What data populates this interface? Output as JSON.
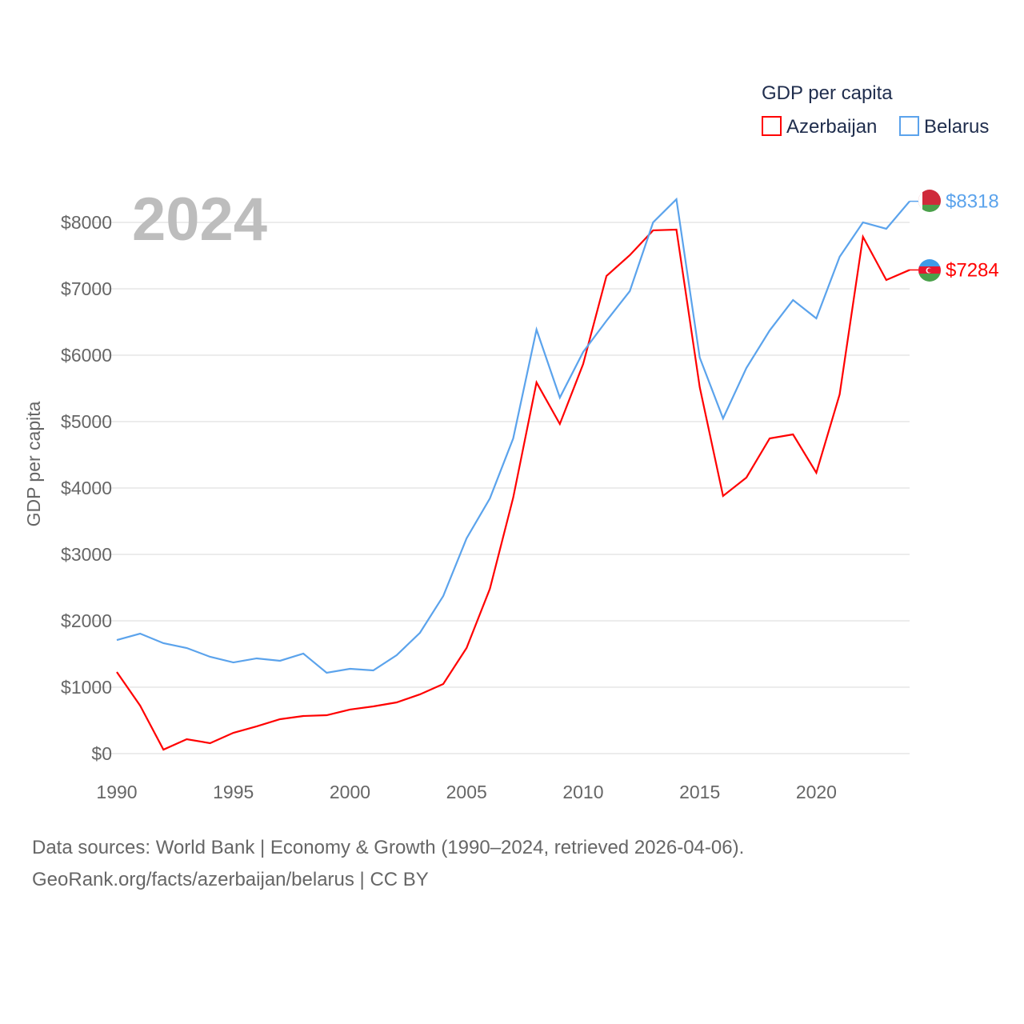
{
  "chart_data": {
    "type": "line",
    "title": "GDP per capita",
    "year_label": "2024",
    "ylabel": "GDP per capita",
    "xlabel": "",
    "xlim": [
      1990,
      2024
    ],
    "ylim": [
      0,
      8000
    ],
    "x_ticks": [
      1990,
      1995,
      2000,
      2005,
      2010,
      2015,
      2020
    ],
    "y_ticks": [
      0,
      1000,
      2000,
      3000,
      4000,
      5000,
      6000,
      7000,
      8000
    ],
    "y_tick_labels": [
      "$0",
      "$1000",
      "$2000",
      "$3000",
      "$4000",
      "$5000",
      "$6000",
      "$7000",
      "$8000"
    ],
    "grid": true,
    "legend_placement": "top-right",
    "x": [
      1990,
      1991,
      1992,
      1993,
      1994,
      1995,
      1996,
      1997,
      1998,
      1999,
      2000,
      2001,
      2002,
      2003,
      2004,
      2005,
      2006,
      2007,
      2008,
      2009,
      2010,
      2011,
      2012,
      2013,
      2014,
      2015,
      2016,
      2017,
      2018,
      2019,
      2020,
      2021,
      2022,
      2023,
      2024
    ],
    "series": [
      {
        "name": "Azerbaijan",
        "color": "#ff0000",
        "end_label": "$7284",
        "values": [
          1229,
          723,
          60,
          217,
          157,
          313,
          410,
          518,
          566,
          578,
          663,
          711,
          771,
          892,
          1048,
          1590,
          2482,
          3855,
          5590,
          4964,
          5867,
          7193,
          7506,
          7880,
          7892,
          5518,
          3880,
          4157,
          4747,
          4807,
          4229,
          5410,
          7783,
          7133,
          7284
        ]
      },
      {
        "name": "Belarus",
        "color": "#5ba3ec",
        "end_label": "$8318",
        "values": [
          1710,
          1807,
          1663,
          1590,
          1458,
          1373,
          1434,
          1398,
          1506,
          1217,
          1277,
          1253,
          1482,
          1819,
          2373,
          3241,
          3843,
          4747,
          6386,
          5361,
          6048,
          6518,
          6964,
          8000,
          8349,
          5964,
          5048,
          5807,
          6373,
          6831,
          6554,
          7482,
          8000,
          7904,
          8318
        ]
      }
    ]
  },
  "footer": {
    "line1": "Data sources: World Bank | Economy & Growth (1990–2024, retrieved 2026-04-06).",
    "line2": "GeoRank.org/facts/azerbaijan/belarus | CC BY"
  }
}
